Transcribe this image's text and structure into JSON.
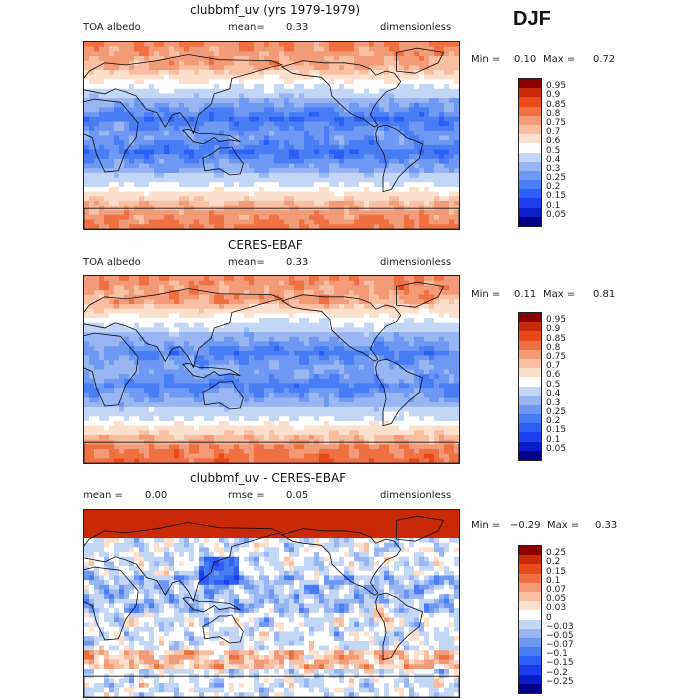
{
  "season": "DJF",
  "panels": [
    {
      "title": "clubbmf_uv (yrs 1979-1979)",
      "left": "TOA albedo",
      "mid_label": "mean=",
      "mid_value": "0.33",
      "right": "dimensionless",
      "min_label": "Min =",
      "min_value": "0.10",
      "max_label": "Max =",
      "max_value": "0.72"
    },
    {
      "title": "CERES-EBAF",
      "left": "TOA albedo",
      "mid_label": "mean=",
      "mid_value": "0.33",
      "right": "dimensionless",
      "min_label": "Min =",
      "min_value": "0.11",
      "max_label": "Max =",
      "max_value": "0.81"
    },
    {
      "title": "clubbmf_uv - CERES-EBAF",
      "left_label": "mean =",
      "left_value": "0.00",
      "mid_label": "rmse =",
      "mid_value": "0.05",
      "right": "dimensionless",
      "min_label": "Min =",
      "min_value": "−0.29",
      "max_label": "Max =",
      "max_value": "0.33"
    }
  ],
  "chart_data": [
    {
      "type": "heatmap",
      "title": "clubbmf_uv (yrs 1979-1979)",
      "variable": "TOA albedo",
      "units": "dimensionless",
      "mean": 0.33,
      "min": 0.1,
      "max": 0.72,
      "colorbar_levels": [
        "0.05",
        "0.1",
        "0.15",
        "0.2",
        "0.25",
        "0.3",
        "0.4",
        "0.5",
        "0.6",
        "0.7",
        "0.75",
        "0.8",
        "0.85",
        "0.9",
        "0.95"
      ],
      "colors": [
        "#00008b",
        "#0a1ec8",
        "#1e3cf0",
        "#2e5ff5",
        "#4a7cf5",
        "#6e98f2",
        "#98b6f2",
        "#c4d6f6",
        "#ffffff",
        "#fde0cc",
        "#f8bfa2",
        "#f39a78",
        "#ef7040",
        "#e84a1a",
        "#c82a08",
        "#8b0000"
      ]
    },
    {
      "type": "heatmap",
      "title": "CERES-EBAF",
      "variable": "TOA albedo",
      "units": "dimensionless",
      "mean": 0.33,
      "min": 0.11,
      "max": 0.81,
      "colorbar_levels": [
        "0.05",
        "0.1",
        "0.15",
        "0.2",
        "0.25",
        "0.3",
        "0.4",
        "0.5",
        "0.6",
        "0.7",
        "0.75",
        "0.8",
        "0.85",
        "0.9",
        "0.95"
      ],
      "colors": [
        "#00008b",
        "#0a1ec8",
        "#1e3cf0",
        "#2e5ff5",
        "#4a7cf5",
        "#6e98f2",
        "#98b6f2",
        "#c4d6f6",
        "#ffffff",
        "#fde0cc",
        "#f8bfa2",
        "#f39a78",
        "#ef7040",
        "#e84a1a",
        "#c82a08",
        "#8b0000"
      ]
    },
    {
      "type": "heatmap",
      "title": "clubbmf_uv - CERES-EBAF",
      "units": "dimensionless",
      "mean": 0.0,
      "rmse": 0.05,
      "min": -0.29,
      "max": 0.33,
      "colorbar_levels": [
        "−0.25",
        "−0.2",
        "−0.15",
        "−0.1",
        "−0.07",
        "−0.05",
        "−0.03",
        "0",
        "0.03",
        "0.05",
        "0.07",
        "0.1",
        "0.15",
        "0.2",
        "0.25"
      ],
      "colors": [
        "#00008b",
        "#0a1ec8",
        "#1e3cf0",
        "#2e5ff5",
        "#4a7cf5",
        "#6e98f2",
        "#98b6f2",
        "#c4d6f6",
        "#ffffff",
        "#fde0cc",
        "#f8bfa2",
        "#f39a78",
        "#ef7040",
        "#e84a1a",
        "#c82a08",
        "#8b0000"
      ]
    }
  ]
}
